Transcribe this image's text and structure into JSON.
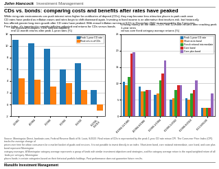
{
  "title": "CDs vs. bonds: comparing costs and benefits after rates have peaked",
  "subtitle": "While rising-rate environments can push interest rates higher for certificates of deposit (CDs), they may become less attractive places to park cash once\nCD rates have peaked as inflation eases and rates begin to shift downward again. Investing in fixed income is an alternative that involves risk, but historically\nhas offered greater long-term growth after CD rates have peaked. With annual inflation running at 6.5% in December 2022 as measured by the Consumer\nPrice Index, it's important to consider inflation-adjusted real returns for CDs versus bonds.",
  "annotations": [
    "John Hancock",
    "Investment Management",
    "Source: Morningstar Direct, bankrate.com, Federal Reserve Bank of St. Louis, 8/2023. Real return of CDs is represented by the peak 1-year CD rate minus CPI. The Consumer Price Index (CPI) tracks the average change of\nprices over time for urban consumers for a market basket of goods and services. It is not possible to invest directly in an index. Short-term bond, core national intermediate, core bond, and core plus bond represent Morningstar\ncategory averages. A Morningstar category average represents a group of funds with similar investment objectives and strategies, and the category average return is the equal-weighted return of all funds per category. Morningstar\nplaces funds in certain categories based on their historical portfolio holdings. Past performance does not guarantee future results.",
    "Manulife Investment Management"
  ],
  "chart_data": [
    {
      "type": "bar",
      "title": "Six historical examples: CDs' inflation-adjusted\nreal 12-month returns after peak 1-year rates (%)",
      "categories": [
        "1/1981",
        "4/1984",
        "3/1989",
        "6/1995",
        "6/2000",
        "6/2006-\n6/2019"
      ],
      "series": [
        {
          "name": "Peak 1-year CD rate",
          "values": [
            11.0,
            10.5,
            9.5,
            6.0,
            7.0,
            2.5
          ]
        },
        {
          "name": "Real return of CDs",
          "values": [
            4.5,
            4.2,
            3.0,
            3.7,
            2.5,
            -1.0
          ]
        }
      ],
      "ylim": [
        -2,
        12
      ],
      "yticks": [
        -2,
        0,
        2,
        4,
        6,
        8,
        10,
        12
      ],
      "grid": true,
      "legend": "upper right"
    },
    {
      "type": "bar",
      "title": "Leaving money on the table—CDs' real 12-month returns after reaching peak 1-year rates\nversus core fixed category average returns (%)",
      "categories": [
        "8/1984-11/1985",
        "4/1984-8/1986",
        "3/1989-1/1994",
        "6/1995-5/2002",
        "6/1998-8/2010",
        "6/13-5/06/20"
      ],
      "series": [
        {
          "name": "Peak 1-year CD rate",
          "values": [
            10.5,
            9.0,
            6.5,
            5.0,
            5.5,
            2.5
          ]
        },
        {
          "name": "Short-term bond",
          "values": [
            9.5,
            7.5,
            7.0,
            5.5,
            5.0,
            2.5
          ]
        },
        {
          "name": "Fixed national intermediate",
          "values": [
            12.0,
            7.5,
            11.0,
            8.0,
            7.0,
            2.5
          ]
        },
        {
          "name": "Core bond",
          "values": [
            19.0,
            8.0,
            13.0,
            9.5,
            8.0,
            2.5
          ]
        },
        {
          "name": "Core plus bond",
          "values": [
            19.5,
            8.0,
            17.0,
            9.5,
            11.0,
            7.0
          ]
        }
      ],
      "ylim": [
        0,
        25
      ],
      "yticks": [
        0,
        5,
        10,
        15,
        20,
        25
      ],
      "grid": true,
      "legend": "upper right"
    }
  ]
}
